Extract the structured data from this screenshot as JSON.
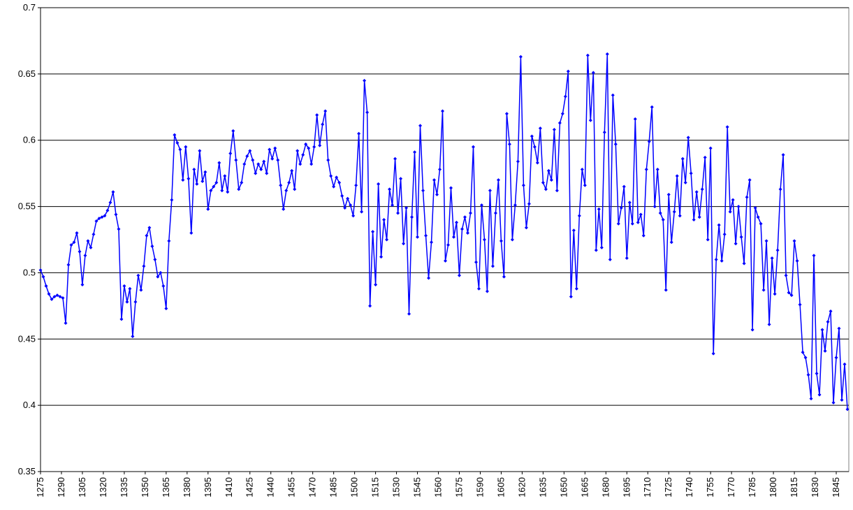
{
  "chart_data": {
    "type": "line",
    "x": [
      1275,
      1277,
      1279,
      1281,
      1283,
      1285,
      1287,
      1289,
      1291,
      1293,
      1295,
      1297,
      1299,
      1301,
      1303,
      1305,
      1307,
      1309,
      1311,
      1313,
      1315,
      1317,
      1319,
      1321,
      1323,
      1325,
      1327,
      1329,
      1331,
      1333,
      1335,
      1337,
      1339,
      1341,
      1343,
      1345,
      1347,
      1349,
      1351,
      1353,
      1355,
      1357,
      1359,
      1361,
      1363,
      1365,
      1367,
      1369,
      1371,
      1373,
      1375,
      1377,
      1379,
      1381,
      1383,
      1385,
      1387,
      1389,
      1391,
      1393,
      1395,
      1397,
      1399,
      1401,
      1403,
      1405,
      1407,
      1409,
      1411,
      1413,
      1415,
      1417,
      1419,
      1421,
      1423,
      1425,
      1427,
      1429,
      1431,
      1433,
      1435,
      1437,
      1439,
      1441,
      1443,
      1445,
      1447,
      1449,
      1451,
      1453,
      1455,
      1457,
      1459,
      1461,
      1463,
      1465,
      1467,
      1469,
      1471,
      1473,
      1475,
      1477,
      1479,
      1481,
      1483,
      1485,
      1487,
      1489,
      1491,
      1493,
      1495,
      1497,
      1499,
      1501,
      1503,
      1505,
      1507,
      1509,
      1511,
      1513,
      1515,
      1517,
      1519,
      1521,
      1523,
      1525,
      1527,
      1529,
      1531,
      1533,
      1535,
      1537,
      1539,
      1541,
      1543,
      1545,
      1547,
      1549,
      1551,
      1553,
      1555,
      1557,
      1559,
      1561,
      1563,
      1565,
      1567,
      1569,
      1571,
      1573,
      1575,
      1577,
      1579,
      1581,
      1583,
      1585,
      1587,
      1589,
      1591,
      1593,
      1595,
      1597,
      1599,
      1601,
      1603,
      1605,
      1607,
      1609,
      1611,
      1613,
      1615,
      1617,
      1619,
      1621,
      1623,
      1625,
      1627,
      1629,
      1631,
      1633,
      1635,
      1637,
      1639,
      1641,
      1643,
      1645,
      1647,
      1649,
      1651,
      1653,
      1655,
      1657,
      1659,
      1661,
      1663,
      1665,
      1667,
      1669,
      1671,
      1673,
      1675,
      1677,
      1679,
      1681,
      1683,
      1685,
      1687,
      1689,
      1691,
      1693,
      1695,
      1697,
      1699,
      1701,
      1703,
      1705,
      1707,
      1709,
      1711,
      1713,
      1715,
      1717,
      1719,
      1721,
      1723,
      1725,
      1727,
      1729,
      1731,
      1733,
      1735,
      1737,
      1739,
      1741,
      1743,
      1745,
      1747,
      1749,
      1751,
      1753,
      1755,
      1757,
      1759,
      1761,
      1763,
      1765,
      1767,
      1769,
      1771,
      1773,
      1775,
      1777,
      1779,
      1781,
      1783,
      1785,
      1787,
      1789,
      1791,
      1793,
      1795,
      1797,
      1799,
      1801,
      1803,
      1805,
      1807,
      1809,
      1811,
      1813,
      1815,
      1817,
      1819,
      1821,
      1823,
      1825,
      1827,
      1829,
      1831,
      1833,
      1835,
      1837,
      1839,
      1841,
      1843,
      1845,
      1847,
      1849,
      1851,
      1853
    ],
    "series": [
      {
        "color": "#0000ff",
        "values": [
          0.502,
          0.497,
          0.49,
          0.484,
          0.48,
          0.482,
          0.483,
          0.482,
          0.481,
          0.462,
          0.506,
          0.521,
          0.523,
          0.53,
          0.516,
          0.491,
          0.513,
          0.524,
          0.519,
          0.529,
          0.539,
          0.541,
          0.542,
          0.543,
          0.547,
          0.553,
          0.561,
          0.544,
          0.533,
          0.465,
          0.49,
          0.478,
          0.488,
          0.452,
          0.478,
          0.498,
          0.487,
          0.505,
          0.528,
          0.534,
          0.52,
          0.51,
          0.497,
          0.5,
          0.49,
          0.473,
          0.524,
          0.555,
          0.604,
          0.598,
          0.593,
          0.57,
          0.595,
          0.571,
          0.53,
          0.578,
          0.567,
          0.592,
          0.569,
          0.576,
          0.548,
          0.562,
          0.565,
          0.568,
          0.583,
          0.562,
          0.573,
          0.561,
          0.59,
          0.607,
          0.585,
          0.563,
          0.568,
          0.582,
          0.588,
          0.592,
          0.585,
          0.575,
          0.582,
          0.578,
          0.584,
          0.575,
          0.593,
          0.586,
          0.594,
          0.585,
          0.566,
          0.548,
          0.562,
          0.568,
          0.577,
          0.563,
          0.592,
          0.582,
          0.589,
          0.597,
          0.594,
          0.582,
          0.595,
          0.619,
          0.596,
          0.612,
          0.622,
          0.585,
          0.573,
          0.565,
          0.572,
          0.568,
          0.558,
          0.549,
          0.556,
          0.551,
          0.543,
          0.566,
          0.605,
          0.546,
          0.645,
          0.621,
          0.475,
          0.531,
          0.491,
          0.567,
          0.512,
          0.54,
          0.525,
          0.563,
          0.551,
          0.586,
          0.545,
          0.571,
          0.522,
          0.549,
          0.469,
          0.542,
          0.591,
          0.527,
          0.611,
          0.562,
          0.528,
          0.496,
          0.523,
          0.57,
          0.559,
          0.578,
          0.622,
          0.509,
          0.521,
          0.564,
          0.527,
          0.538,
          0.498,
          0.533,
          0.542,
          0.53,
          0.545,
          0.595,
          0.508,
          0.488,
          0.551,
          0.525,
          0.486,
          0.562,
          0.505,
          0.545,
          0.57,
          0.524,
          0.497,
          0.62,
          0.597,
          0.525,
          0.551,
          0.584,
          0.663,
          0.566,
          0.534,
          0.552,
          0.603,
          0.595,
          0.583,
          0.609,
          0.568,
          0.563,
          0.577,
          0.57,
          0.608,
          0.562,
          0.613,
          0.62,
          0.633,
          0.652,
          0.482,
          0.532,
          0.488,
          0.543,
          0.578,
          0.566,
          0.664,
          0.615,
          0.651,
          0.517,
          0.548,
          0.519,
          0.606,
          0.665,
          0.51,
          0.634,
          0.597,
          0.537,
          0.549,
          0.565,
          0.511,
          0.553,
          0.537,
          0.616,
          0.538,
          0.544,
          0.528,
          0.578,
          0.599,
          0.625,
          0.55,
          0.578,
          0.545,
          0.54,
          0.487,
          0.559,
          0.523,
          0.546,
          0.573,
          0.543,
          0.586,
          0.568,
          0.602,
          0.575,
          0.54,
          0.561,
          0.542,
          0.563,
          0.587,
          0.525,
          0.594,
          0.439,
          0.51,
          0.536,
          0.509,
          0.529,
          0.61,
          0.546,
          0.555,
          0.522,
          0.55,
          0.527,
          0.507,
          0.557,
          0.57,
          0.457,
          0.549,
          0.542,
          0.537,
          0.487,
          0.524,
          0.461,
          0.511,
          0.484,
          0.517,
          0.563,
          0.589,
          0.498,
          0.485,
          0.483,
          0.524,
          0.509,
          0.476,
          0.44,
          0.436,
          0.423,
          0.405,
          0.513,
          0.424,
          0.408,
          0.457,
          0.441,
          0.463,
          0.471,
          0.402,
          0.436,
          0.458,
          0.404,
          0.431,
          0.397
        ]
      }
    ],
    "xlim": [
      1275,
      1854
    ],
    "xticks": [
      1275,
      1290,
      1305,
      1320,
      1335,
      1350,
      1365,
      1380,
      1395,
      1410,
      1425,
      1440,
      1455,
      1470,
      1485,
      1500,
      1515,
      1530,
      1545,
      1560,
      1575,
      1590,
      1605,
      1620,
      1635,
      1650,
      1665,
      1680,
      1695,
      1710,
      1725,
      1740,
      1755,
      1770,
      1785,
      1800,
      1815,
      1830,
      1845
    ],
    "ylim": [
      0.35,
      0.7
    ],
    "yticks": [
      0.35,
      0.4,
      0.45,
      0.5,
      0.55,
      0.6,
      0.65,
      0.7
    ],
    "grid": true
  }
}
